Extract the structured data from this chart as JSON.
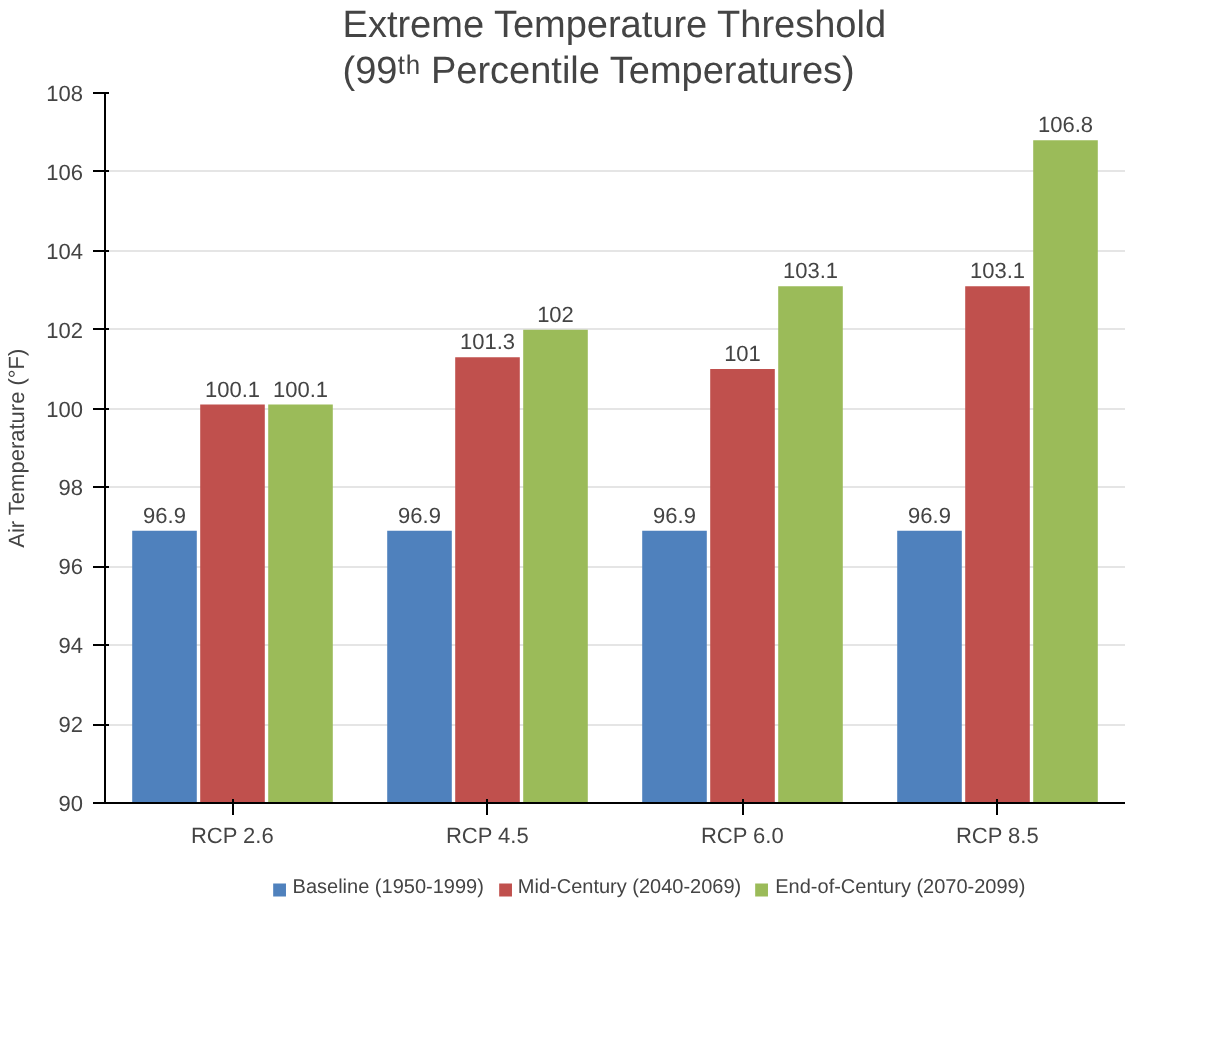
{
  "chart_data": {
    "type": "bar",
    "title": "Extreme Temperature Threshold\n(99ᵗʰ Percentile Temperatures)",
    "ylabel": "Air Temperature (°F)",
    "categories": [
      "RCP 2.6",
      "RCP 4.5",
      "RCP 6.0",
      "RCP 8.5"
    ],
    "series": [
      {
        "name": "Baseline (1950-1999)",
        "color": "#4f81bd",
        "values": [
          96.9,
          96.9,
          96.9,
          96.9
        ]
      },
      {
        "name": "Mid-Century (2040-2069)",
        "color": "#c0504d",
        "values": [
          100.1,
          101.3,
          101,
          103.1
        ]
      },
      {
        "name": "End-of-Century (2070-2099)",
        "color": "#9bbb59",
        "values": [
          100.1,
          102,
          103.1,
          106.8
        ]
      }
    ],
    "ylim": [
      90,
      108
    ],
    "yticks": [
      90,
      92,
      94,
      96,
      98,
      100,
      102,
      104,
      106,
      108
    ],
    "grid": "y",
    "legend": "bottom",
    "data_labels": true
  }
}
